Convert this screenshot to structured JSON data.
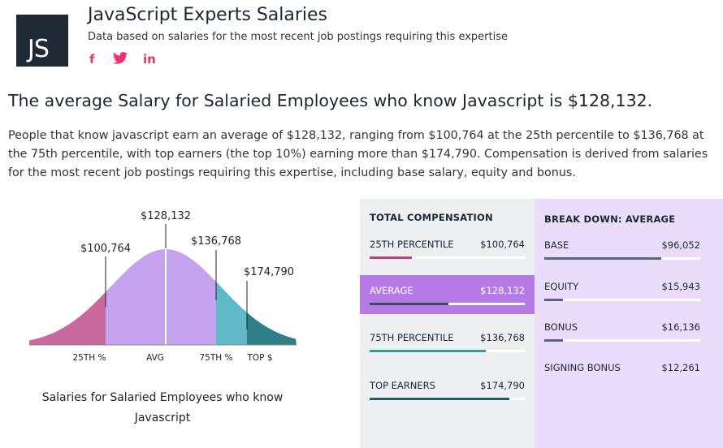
{
  "header": {
    "logo_text": "JS",
    "title": "JavaScript Experts Salaries",
    "subtitle": "Data based on salaries for the most recent job postings requiring this expertise",
    "social": {
      "facebook": "f",
      "twitter": "🐦",
      "linkedin": "in"
    }
  },
  "headline": "The average Salary for Salaried Employees who know Javascript is $128,132.",
  "description": "People that know javascript earn an average of $128,132, ranging from $100,764 at the 25th percentile to $136,768 at the 75th percentile, with top earners (the top 10%) earning more than $174,790. Compensation is derived from salaries for the most recent job postings requiring this expertise, including base salary, equity and bonus.",
  "curve": {
    "value_labels": {
      "p25": "$100,764",
      "avg": "$128,132",
      "p75": "$136,768",
      "top": "$174,790"
    },
    "axis_labels": {
      "p25": "25TH %",
      "avg": "AVG",
      "p75": "75TH %",
      "top": "TOP $"
    },
    "caption": "Salaries for Salaried Employees who know Javascript",
    "colors": {
      "p25": "#c9699e",
      "avg": "#c6a3ee",
      "p75": "#5fb9c6",
      "top": "#2f7f86"
    }
  },
  "total_compensation": {
    "heading": "TOTAL COMPENSATION",
    "rows": [
      {
        "label": "25TH PERCENTILE",
        "value": "$100,764",
        "fill": 0.27,
        "color": "#b8417f"
      },
      {
        "label": "AVERAGE",
        "value": "$128,132",
        "fill": 0.51,
        "color": "#3d4a5a",
        "active": true
      },
      {
        "label": "75TH PERCENTILE",
        "value": "$136,768",
        "fill": 0.75,
        "color": "#2f9aa3"
      },
      {
        "label": "TOP EARNERS",
        "value": "$174,790",
        "fill": 0.9,
        "color": "#1f5c63"
      }
    ]
  },
  "breakdown": {
    "heading": "BREAK DOWN: AVERAGE",
    "rows": [
      {
        "label": "BASE",
        "value": "$96,052",
        "fill": 0.75
      },
      {
        "label": "EQUITY",
        "value": "$15,943",
        "fill": 0.12
      },
      {
        "label": "BONUS",
        "value": "$16,136",
        "fill": 0.12
      },
      {
        "label": "SIGNING BONUS",
        "value": "$12,261",
        "fill": 0
      }
    ],
    "bar_color": "#5c6478"
  }
}
